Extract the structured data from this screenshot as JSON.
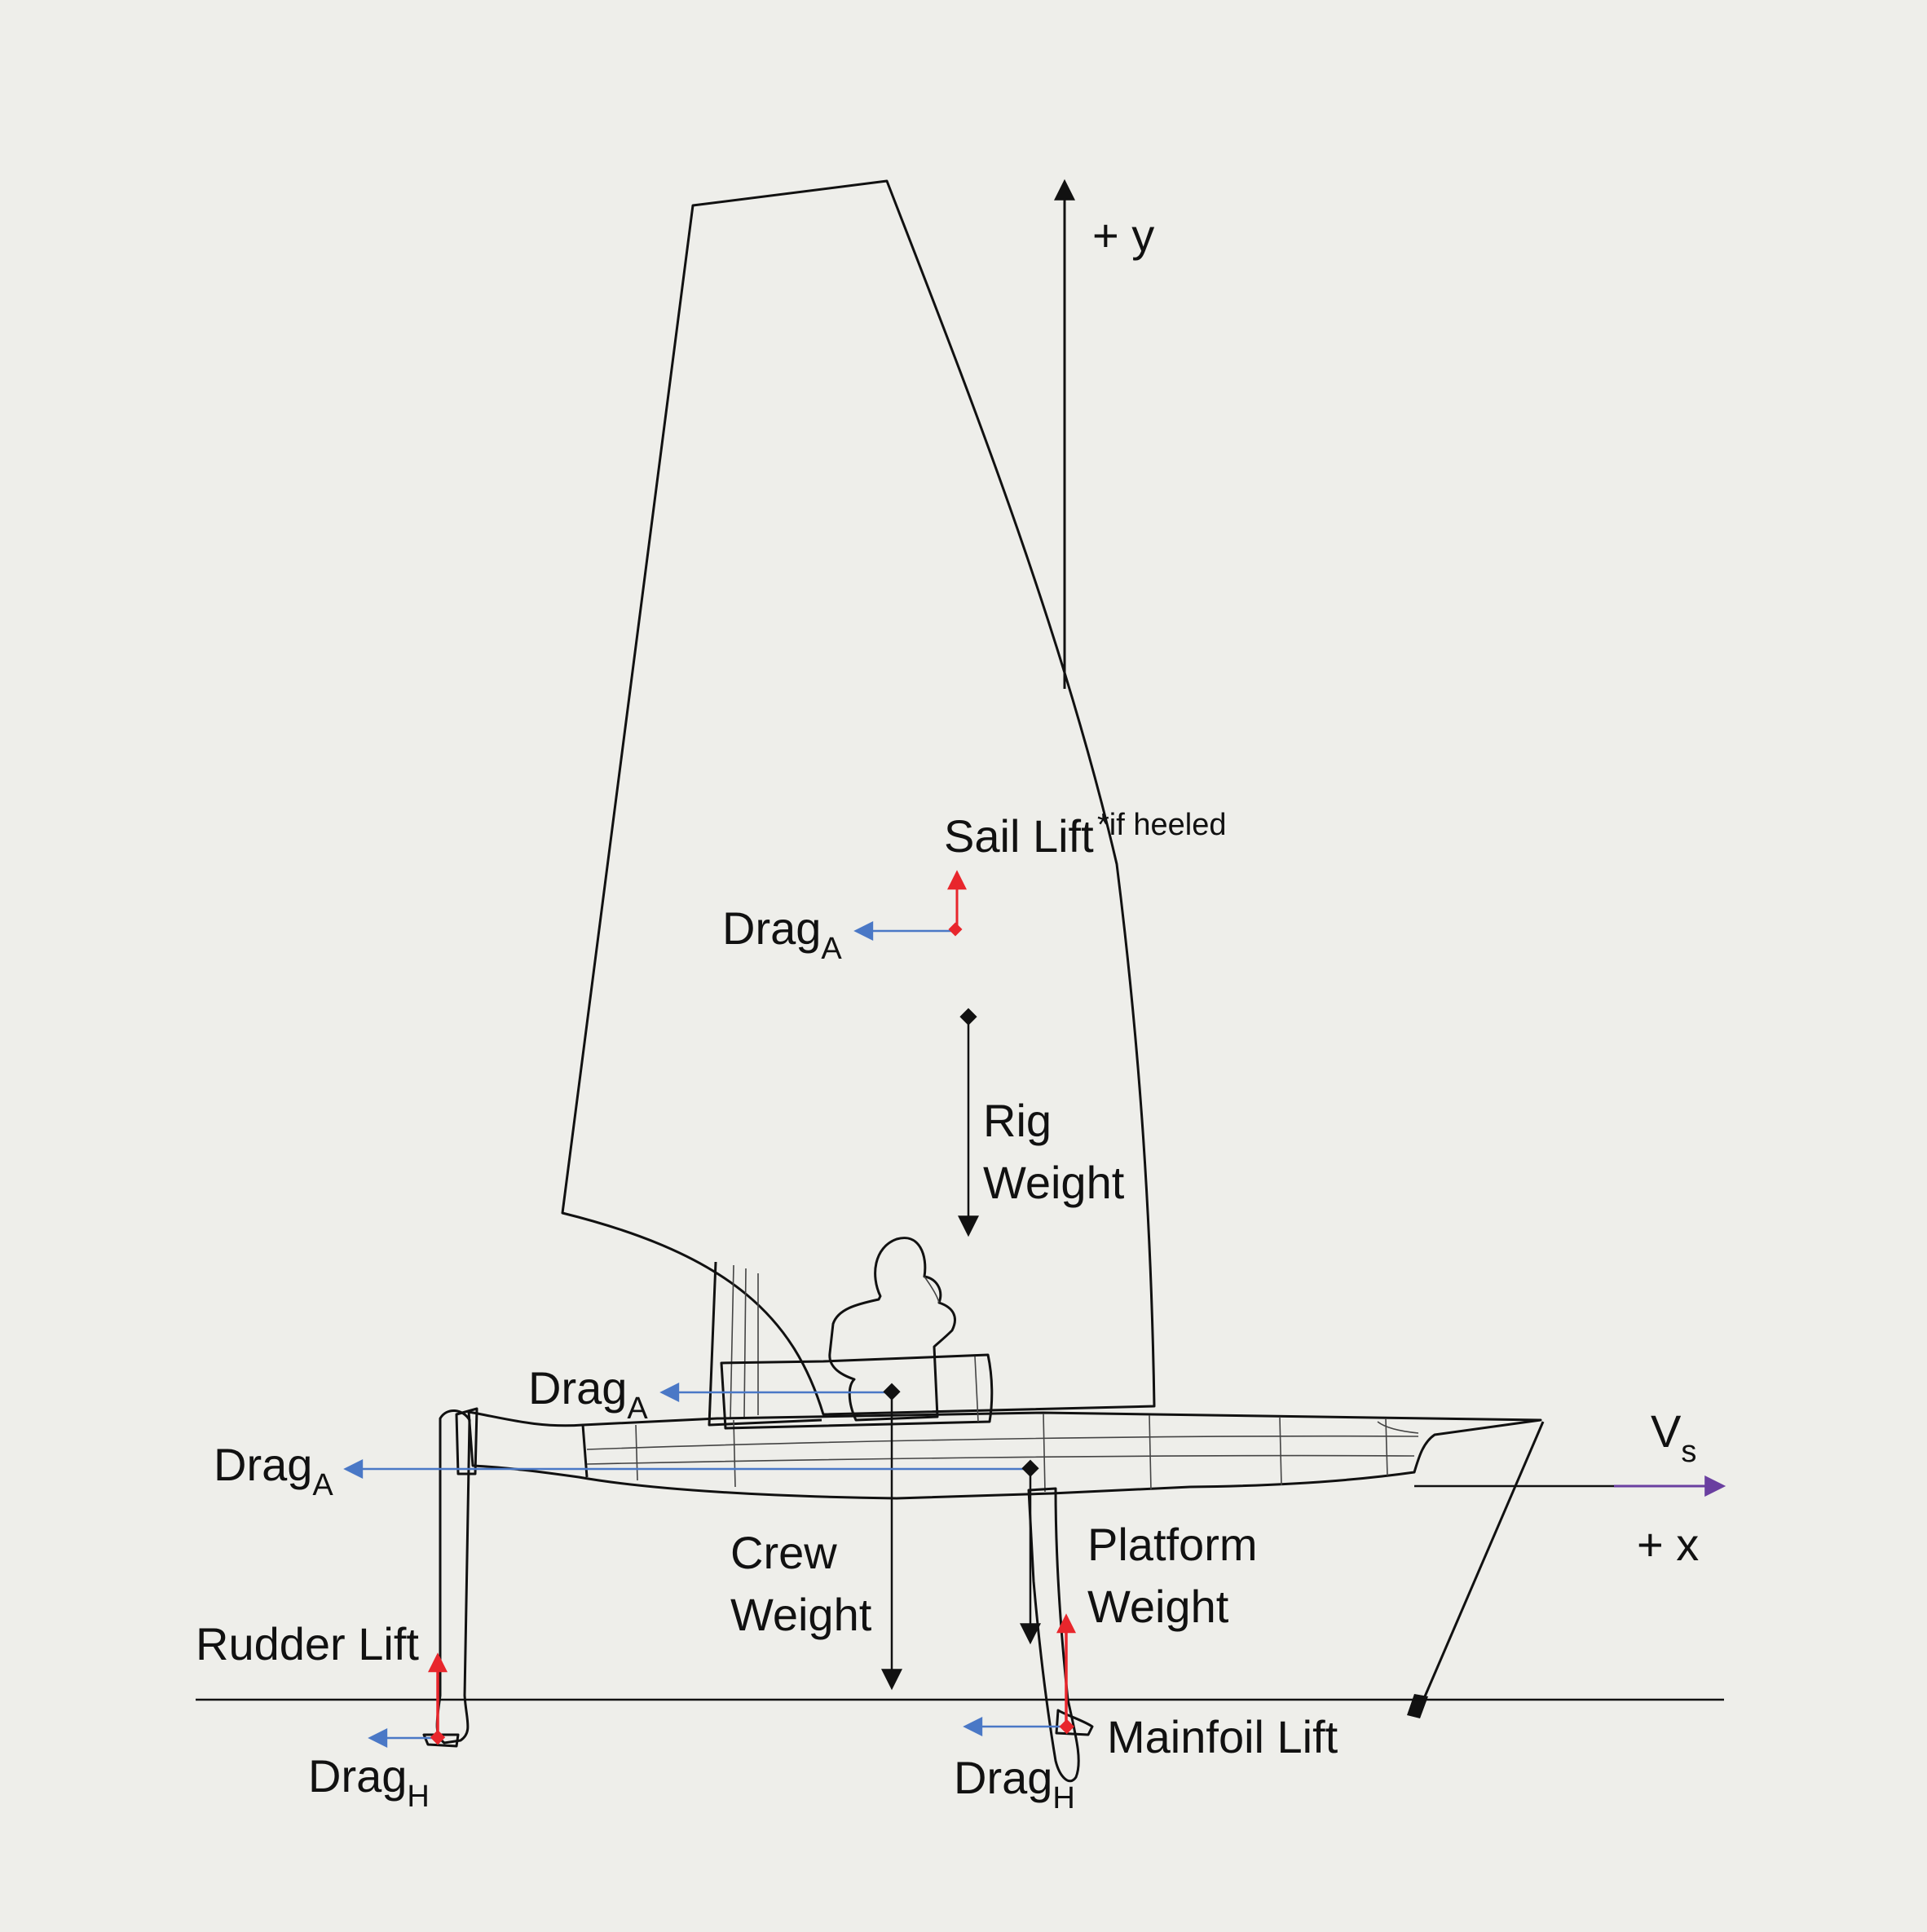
{
  "colors": {
    "background": "#eeeeea",
    "outline": "#111111",
    "lift": "#e8262c",
    "drag": "#4a78c6",
    "weight": "#111111",
    "velocity": "#6a3fa0"
  },
  "axes": {
    "y_label": "+ y",
    "x_label": "+ x",
    "velocity_symbol": "V",
    "velocity_sub": "s"
  },
  "forces": {
    "sail_lift": {
      "label": "Sail Lift",
      "note": "*if heeled"
    },
    "drag_sail": {
      "base": "Drag",
      "sub": "A"
    },
    "rig_weight": {
      "line1": "Rig",
      "line2": "Weight"
    },
    "drag_crew": {
      "base": "Drag",
      "sub": "A"
    },
    "drag_platform": {
      "base": "Drag",
      "sub": "A"
    },
    "crew_weight": {
      "line1": "Crew",
      "line2": "Weight"
    },
    "platform_weight": {
      "line1": "Platform",
      "line2": "Weight"
    },
    "rudder_lift": {
      "label": "Rudder Lift"
    },
    "drag_rudder": {
      "base": "Drag",
      "sub": "H"
    },
    "mainfoil_lift": {
      "label": "Mainfoil Lift"
    },
    "drag_mainfoil": {
      "base": "Drag",
      "sub": "H"
    }
  }
}
